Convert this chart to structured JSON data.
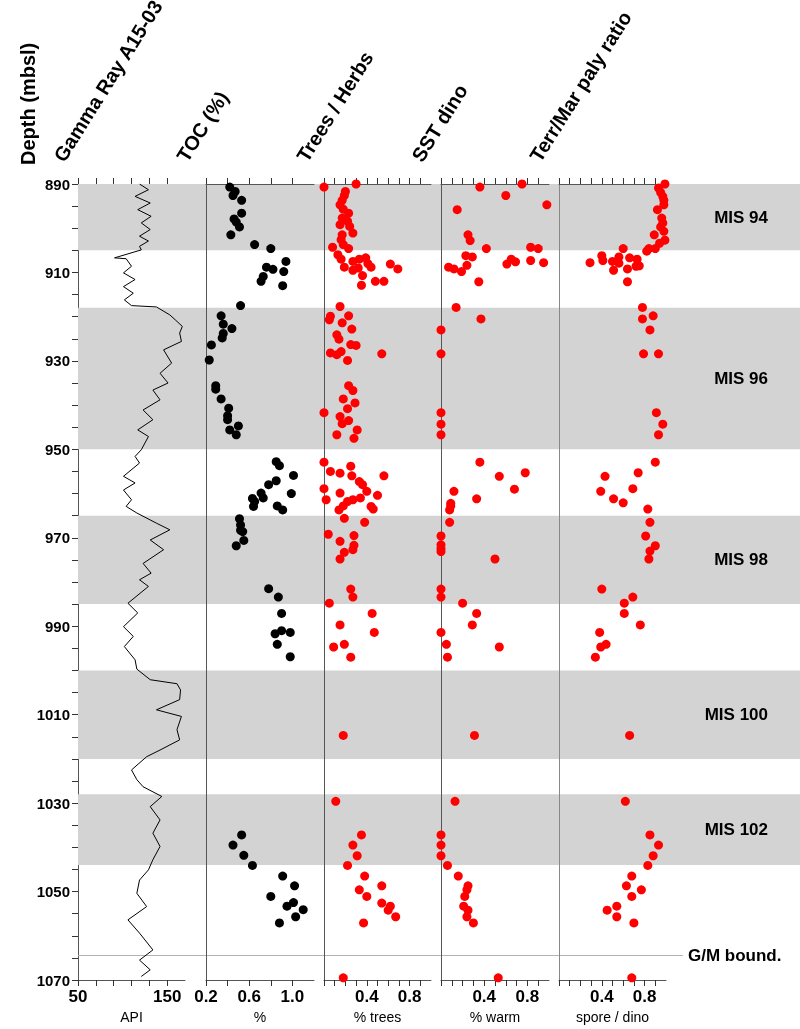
{
  "chart_data": [
    {
      "type": "line",
      "title": "Gamma Ray A15-03",
      "ylabel": "Depth (mbsl)",
      "xlabel": "API",
      "orientation": "horizontal",
      "color": "#000000",
      "marker": "none",
      "x": [
        890.0,
        891.3,
        892.8,
        894.3,
        895.8,
        897.3,
        898.8,
        900.3,
        901.8,
        902.9,
        904.1,
        904.9,
        906.7,
        906.9,
        908.6,
        910.1,
        911.6,
        913.2,
        914.7,
        916.2,
        917.5,
        917.8,
        919.6,
        920.7,
        922.2,
        923.7,
        925.6,
        927.5,
        930.5,
        932.8,
        935.0,
        936.6,
        938.8,
        941.1,
        943.3,
        945.6,
        947.1,
        950.1,
        951.6,
        953.1,
        956.1,
        957.6,
        959.2,
        961.4,
        962.9,
        964.4,
        966.7,
        968.2,
        970.5,
        972.7,
        975.8,
        978.0,
        979.5,
        981.0,
        984.8,
        987.0,
        990.1,
        992.3,
        994.6,
        997.6,
        999.7,
        1002.1,
        1003.0,
        1004.4,
        1006.6,
        1008.9,
        1010.4,
        1013.4,
        1015.7,
        1018.0,
        1019.5,
        1022.5,
        1024.7,
        1026.3,
        1028.5,
        1030.8,
        1033.8,
        1036.8,
        1039.8,
        1042.8,
        1045.1,
        1047.4,
        1050.4,
        1053.4,
        1056.4,
        1059.4,
        1063.2,
        1065.5,
        1067.7,
        1069.2
      ],
      "values": [
        119,
        129,
        114,
        131,
        117,
        132,
        121,
        131,
        119,
        129,
        119,
        121,
        91,
        104,
        110,
        101,
        114,
        101,
        112,
        102,
        110,
        138,
        153,
        159,
        167,
        164,
        166,
        146,
        155,
        142,
        151,
        134,
        142,
        123,
        134,
        117,
        129,
        121,
        114,
        119,
        101,
        114,
        101,
        110,
        104,
        116,
        138,
        153,
        131,
        146,
        123,
        132,
        119,
        129,
        106,
        117,
        101,
        112,
        102,
        114,
        116,
        131,
        161,
        165,
        164,
        138,
        166,
        161,
        164,
        142,
        127,
        110,
        116,
        123,
        144,
        131,
        142,
        134,
        142,
        134,
        129,
        119,
        116,
        127,
        106,
        119,
        134,
        119,
        131,
        121
      ],
      "xlim": [
        50,
        170
      ],
      "xticks": [
        50,
        {
          "value": 70,
          "label": null
        },
        {
          "value": 90,
          "label": null
        },
        {
          "value": 110,
          "label": null
        },
        {
          "value": 130,
          "label": null
        },
        150
      ],
      "ylim": [
        1070,
        890
      ],
      "yticks": [
        890,
        {
          "value": 895,
          "label": null
        },
        {
          "value": 900,
          "label": null
        },
        {
          "value": 905,
          "label": null
        },
        910,
        {
          "value": 915,
          "label": null
        },
        {
          "value": 920,
          "label": null
        },
        {
          "value": 925,
          "label": null
        },
        930,
        {
          "value": 935,
          "label": null
        },
        {
          "value": 940,
          "label": null
        },
        {
          "value": 945,
          "label": null
        },
        950,
        {
          "value": 955,
          "label": null
        },
        {
          "value": 960,
          "label": null
        },
        {
          "value": 965,
          "label": null
        },
        970,
        {
          "value": 975,
          "label": null
        },
        {
          "value": 980,
          "label": null
        },
        {
          "value": 985,
          "label": null
        },
        990,
        {
          "value": 995,
          "label": null
        },
        {
          "value": 1000,
          "label": null
        },
        {
          "value": 1005,
          "label": null
        },
        1010,
        {
          "value": 1015,
          "label": null
        },
        {
          "value": 1020,
          "label": null
        },
        {
          "value": 1025,
          "label": null
        },
        1030,
        {
          "value": 1035,
          "label": null
        },
        {
          "value": 1040,
          "label": null
        },
        {
          "value": 1045,
          "label": null
        },
        1050,
        {
          "value": 1055,
          "label": null
        },
        {
          "value": 1060,
          "label": null
        },
        {
          "value": 1065,
          "label": null
        },
        1070
      ],
      "bands": [
        {
          "axis": "y",
          "from": 890,
          "to": 905,
          "label": "MIS 94",
          "color": "#d3d3d3"
        },
        {
          "axis": "y",
          "from": 918,
          "to": 950,
          "label": "MIS 96",
          "color": "#d3d3d3"
        },
        {
          "axis": "y",
          "from": 965,
          "to": 985,
          "label": "MIS 98",
          "color": "#d3d3d3"
        },
        {
          "axis": "y",
          "from": 1000,
          "to": 1020,
          "label": "MIS 100",
          "color": "#d3d3d3"
        },
        {
          "axis": "y",
          "from": 1028,
          "to": 1044,
          "label": "MIS 102",
          "color": "#d3d3d3"
        }
      ],
      "ref_lines": [
        {
          "axis": "y",
          "value": 1064.5,
          "label": "G/M bound.",
          "color": "#b4b4b4"
        }
      ]
    },
    {
      "type": "scatter",
      "title": "TOC (%)",
      "xlabel": "%",
      "orientation": "horizontal",
      "color": "#000000",
      "marker": "circle",
      "tick_labels": "x",
      "x": [
        890.7,
        891.7,
        892.6,
        893.7,
        896.6,
        897.9,
        898.6,
        899.7,
        901.5,
        903.7,
        904.6,
        907.5,
        908.8,
        909.3,
        909.8,
        910.9,
        912.0,
        913.0,
        917.5,
        919.8,
        921.7,
        922.7,
        923.8,
        924.8,
        926.4,
        929.8,
        935.6,
        936.4,
        938.6,
        940.7,
        942.4,
        943.3,
        944.7,
        945.6,
        946.7,
        952.8,
        953.7,
        955.9,
        957.1,
        958.0,
        959.9,
        960.0,
        961.1,
        961.0,
        961.8,
        962.9,
        962.8,
        963.7,
        965.7,
        967.1,
        968.3,
        968.6,
        970.6,
        971.8,
        981.5,
        983.4,
        987.1,
        991.7,
        991.0,
        991.4,
        994.1,
        996.9,
        1037.2,
        1039.5,
        1041.8,
        1044.1,
        1046.5,
        1048.7,
        1051.1,
        1052.5,
        1053.3,
        1054.1,
        1055.7,
        1057.1
      ],
      "values": [
        0.42,
        0.47,
        0.45,
        0.53,
        0.53,
        0.46,
        0.48,
        0.51,
        0.43,
        0.65,
        0.8,
        0.94,
        0.76,
        0.82,
        0.92,
        0.73,
        0.71,
        0.91,
        0.52,
        0.34,
        0.36,
        0.44,
        0.36,
        0.35,
        0.25,
        0.23,
        0.29,
        0.29,
        0.34,
        0.41,
        0.4,
        0.4,
        0.5,
        0.42,
        0.48,
        0.85,
        0.88,
        1.01,
        0.85,
        0.78,
        0.71,
        0.99,
        0.63,
        0.73,
        0.65,
        0.64,
        0.86,
        0.91,
        0.51,
        0.52,
        0.52,
        0.54,
        0.55,
        0.48,
        0.78,
        0.87,
        0.9,
        0.84,
        0.9,
        0.98,
        0.86,
        0.98,
        0.53,
        0.45,
        0.55,
        0.63,
        0.91,
        1.02,
        0.8,
        1.01,
        0.95,
        1.1,
        1.03,
        0.88
      ],
      "xlim": [
        0.2,
        1.2
      ],
      "xticks": [
        0.2,
        {
          "value": 0.4,
          "label": null
        },
        0.6,
        {
          "value": 0.8,
          "label": null
        },
        {
          "value": 1,
          "label": "1.0"
        }
      ],
      "ylim": [
        1070,
        890
      ]
    },
    {
      "type": "scatter",
      "title": "Trees / Herbs",
      "xlabel": "% trees",
      "orientation": "horizontal",
      "color": "#ff0000",
      "marker": "circle",
      "tick_labels": "x",
      "x": [
        890.7,
        890.0,
        891.7,
        892.6,
        893.7,
        894.7,
        895.7,
        896.6,
        897.7,
        898.4,
        899.2,
        899.6,
        901.1,
        901.5,
        902.6,
        904.3,
        903.7,
        904.6,
        906.0,
        907.0,
        907.5,
        907.0,
        906.7,
        908.0,
        908.8,
        909.0,
        908.8,
        909.5,
        908.1,
        909.2,
        910.7,
        912.9,
        912.0,
        912.0,
        917.7,
        919.9,
        920.7,
        919.8,
        921.4,
        922.8,
        924.1,
        925.1,
        926.3,
        926.5,
        928.2,
        928.6,
        927.9,
        928.4,
        929.9,
        935.6,
        936.7,
        938.6,
        939.5,
        940.8,
        941.7,
        942.6,
        943.5,
        944.2,
        945.6,
        946.7,
        947.5,
        952.9,
        955.0,
        955.4,
        953.8,
        956.0,
        956.0,
        957.3,
        958.0,
        958.9,
        959.9,
        959.5,
        961.4,
        960.4,
        961.4,
        961.0,
        961.8,
        962.8,
        962.9,
        963.7,
        963.5,
        965.6,
        966.5,
        969.2,
        969.5,
        970.8,
        971.7,
        972.7,
        973.3,
        974.8,
        981.6,
        983.4,
        984.8,
        987.1,
        989.7,
        991.4,
        994.1,
        994.7,
        997.0,
        1014.7,
        1029.6,
        1037.2,
        1039.5,
        1041.9,
        1044.1,
        1046.5,
        1048.7,
        1049.6,
        1051.1,
        1052.6,
        1053.3,
        1054.2,
        1055.7,
        1057.1,
        1069.5
      ],
      "values": [
        0.0,
        0.3,
        0.2,
        0.19,
        0.17,
        0.15,
        0.18,
        0.23,
        0.17,
        0.22,
        0.15,
        0.24,
        0.27,
        0.17,
        0.16,
        0.08,
        0.18,
        0.23,
        0.13,
        0.16,
        0.27,
        0.33,
        0.39,
        0.41,
        0.19,
        0.32,
        0.44,
        0.27,
        0.62,
        0.69,
        0.36,
        0.35,
        0.48,
        0.56,
        0.15,
        0.06,
        0.05,
        0.23,
        0.17,
        0.26,
        0.12,
        0.14,
        0.25,
        0.3,
        0.06,
        0.12,
        0.16,
        0.54,
        0.22,
        0.23,
        0.27,
        0.18,
        0.29,
        0.22,
        0.0,
        0.15,
        0.23,
        0.17,
        0.31,
        0.12,
        0.28,
        0.0,
        0.06,
        0.15,
        0.25,
        0.26,
        0.56,
        0.33,
        0.36,
        0.0,
        0.15,
        0.4,
        0.02,
        0.5,
        0.27,
        0.34,
        0.22,
        0.18,
        0.44,
        0.14,
        0.46,
        0.19,
        0.38,
        0.04,
        0.28,
        0.15,
        0.28,
        0.27,
        0.19,
        0.15,
        0.25,
        0.27,
        0.05,
        0.45,
        0.15,
        0.47,
        0.19,
        0.09,
        0.25,
        0.18,
        0.11,
        0.35,
        0.27,
        0.31,
        0.22,
        0.38,
        0.54,
        0.33,
        0.4,
        0.54,
        0.62,
        0.6,
        0.67,
        0.37,
        0.18
      ],
      "xlim": [
        0,
        1
      ],
      "xticks": [
        {
          "value": 0,
          "label": null
        },
        {
          "value": 0.1,
          "label": null
        },
        {
          "value": 0.2,
          "label": null
        },
        {
          "value": 0.3,
          "label": null
        },
        0.4,
        {
          "value": 0.5,
          "label": null
        },
        {
          "value": 0.6,
          "label": null
        },
        {
          "value": 0.7,
          "label": null
        },
        0.8,
        {
          "value": 0.9,
          "label": null
        }
      ],
      "ylim": [
        1070,
        890
      ]
    },
    {
      "type": "scatter",
      "title": "SST dino",
      "xlabel": "% warm",
      "orientation": "horizontal",
      "color": "#ff0000",
      "marker": "circle",
      "tick_labels": "x",
      "x": [
        890.7,
        890.0,
        892.6,
        894.7,
        895.8,
        901.5,
        902.8,
        904.6,
        904.3,
        904.6,
        906.2,
        906.5,
        908.8,
        909.2,
        909.8,
        908.4,
        908.1,
        907.0,
        907.6,
        907.3,
        907.8,
        912.1,
        917.9,
        920.5,
        923.0,
        928.4,
        941.7,
        944.3,
        946.7,
        952.9,
        956.1,
        955.3,
        959.0,
        959.5,
        961.2,
        962.2,
        962.8,
        963.7,
        966.5,
        969.6,
        971.6,
        972.4,
        973.1,
        974.8,
        981.6,
        983.4,
        984.8,
        987.1,
        989.7,
        991.4,
        994.1,
        994.7,
        997.0,
        1014.7,
        1029.6,
        1037.2,
        1039.5,
        1041.9,
        1044.1,
        1046.5,
        1048.7,
        1049.6,
        1051.1,
        1053.3,
        1054.2,
        1055.7,
        1057.1,
        1069.5
      ],
      "values": [
        0.36,
        0.75,
        0.6,
        0.98,
        0.15,
        0.25,
        0.27,
        0.42,
        0.83,
        0.9,
        0.23,
        0.29,
        0.07,
        0.12,
        0.19,
        0.24,
        0.61,
        0.65,
        0.69,
        0.83,
        0.95,
        0.35,
        0.14,
        0.37,
        0,
        0,
        0,
        0,
        0,
        0.36,
        0.54,
        0.78,
        0.68,
        0.12,
        0.33,
        0.09,
        0.09,
        0.08,
        0.08,
        0,
        0,
        0,
        0,
        0.5,
        0,
        0,
        0.2,
        0.33,
        0.29,
        0,
        0.05,
        0.54,
        0.06,
        0.31,
        0.13,
        0,
        0,
        0,
        0.06,
        0.16,
        0.25,
        0.24,
        0.22,
        0.21,
        0.25,
        0.24,
        0.3,
        0.53
      ],
      "xlim": [
        0,
        1
      ],
      "xticks": [
        {
          "value": 0,
          "label": null
        },
        {
          "value": 0.1,
          "label": null
        },
        {
          "value": 0.2,
          "label": null
        },
        {
          "value": 0.3,
          "label": null
        },
        0.4,
        {
          "value": 0.5,
          "label": null
        },
        {
          "value": 0.6,
          "label": null
        },
        {
          "value": 0.7,
          "label": null
        },
        0.8,
        {
          "value": 0.9,
          "label": null
        }
      ],
      "ylim": [
        1070,
        890
      ]
    },
    {
      "type": "scatter",
      "title": "Terr/Mar paly ratio",
      "xlabel": "spore / dino",
      "orientation": "horizontal",
      "color": "#ff0000",
      "marker": "circle",
      "tick_labels": "x",
      "x": [
        890.0,
        890.9,
        891.9,
        892.8,
        893.7,
        894.7,
        895.8,
        897.7,
        898.8,
        899.7,
        900.7,
        901.5,
        902.7,
        903.4,
        904.6,
        904.6,
        905.2,
        904.6,
        906.2,
        907.3,
        907.8,
        907.5,
        906.5,
        906.7,
        907.0,
        907.9,
        909.5,
        909.2,
        908.6,
        908.5,
        912.1,
        917.9,
        919.8,
        920.5,
        923.0,
        928.4,
        928.4,
        941.7,
        944.3,
        946.7,
        952.9,
        955.3,
        956.1,
        958.9,
        959.5,
        961.2,
        962.1,
        963.5,
        966.5,
        969.6,
        971.8,
        973.0,
        974.8,
        981.6,
        983.4,
        984.8,
        987.1,
        989.7,
        991.4,
        994.1,
        994.7,
        997.0,
        1014.7,
        1029.6,
        1037.2,
        1039.5,
        1041.9,
        1044.1,
        1046.5,
        1048.7,
        1049.6,
        1051.1,
        1053.3,
        1054.2,
        1055.7,
        1057.1,
        1069.5
      ],
      "values": [
        0.99,
        0.93,
        0.95,
        0.97,
        0.98,
        0.98,
        0.92,
        0.96,
        0.97,
        0.95,
        0.98,
        0.89,
        0.99,
        0.94,
        0.9,
        0.84,
        0.82,
        0.6,
        0.4,
        0.41,
        0.29,
        0.5,
        0.56,
        0.66,
        0.73,
        0.56,
        0.51,
        0.64,
        0.72,
        0.75,
        0.64,
        0.78,
        0.88,
        0.78,
        0.85,
        0.79,
        0.93,
        0.91,
        0.97,
        0.93,
        0.9,
        0.74,
        0.43,
        0.69,
        0.39,
        0.51,
        0.6,
        0.83,
        0.85,
        0.81,
        0.9,
        0.85,
        0.84,
        0.4,
        0.69,
        0.61,
        0.61,
        0.76,
        0.38,
        0.44,
        0.39,
        0.34,
        0.66,
        0.62,
        0.85,
        0.93,
        0.88,
        0.83,
        0.68,
        0.63,
        0.77,
        0.68,
        0.54,
        0.45,
        0.54,
        0.7,
        0.68
      ],
      "xlim": [
        0,
        1
      ],
      "xticks": [
        {
          "value": 0,
          "label": null
        },
        {
          "value": 0.1,
          "label": null
        },
        {
          "value": 0.2,
          "label": null
        },
        {
          "value": 0.3,
          "label": null
        },
        0.4,
        {
          "value": 0.5,
          "label": null
        },
        {
          "value": 0.6,
          "label": null
        },
        {
          "value": 0.7,
          "label": null
        },
        0.8,
        {
          "value": 0.9,
          "label": null
        }
      ],
      "ylim": [
        1070,
        890
      ]
    }
  ]
}
